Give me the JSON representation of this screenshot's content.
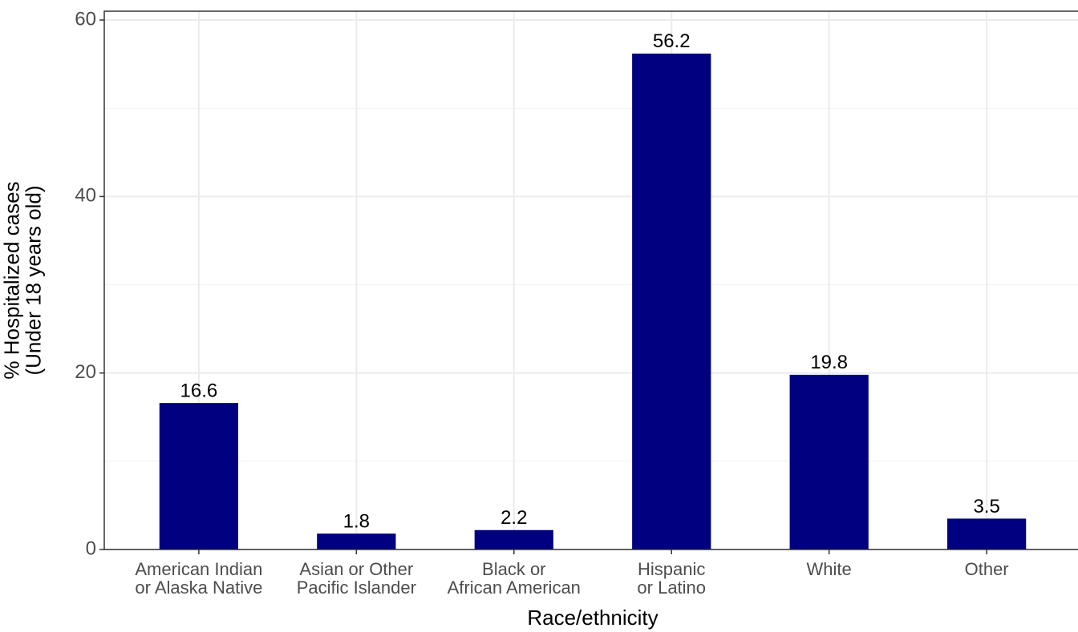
{
  "chart_data": {
    "type": "bar",
    "x_label": "Race/ethnicity",
    "y_label": "% Hospitalized cases\n(Under 18 years old)",
    "categories": [
      "American Indian\nor Alaska Native",
      "Asian or Other\nPacific Islander",
      "Black or\nAfrican American",
      "Hispanic\nor Latino",
      "White",
      "Other"
    ],
    "values": [
      16.6,
      1.8,
      2.2,
      56.2,
      19.8,
      3.5
    ],
    "color": "#000080",
    "ylim": [
      0,
      61
    ],
    "yticks": [
      0,
      20,
      40,
      60
    ],
    "minor_yticks": [
      10,
      30,
      50
    ],
    "grid": true
  }
}
